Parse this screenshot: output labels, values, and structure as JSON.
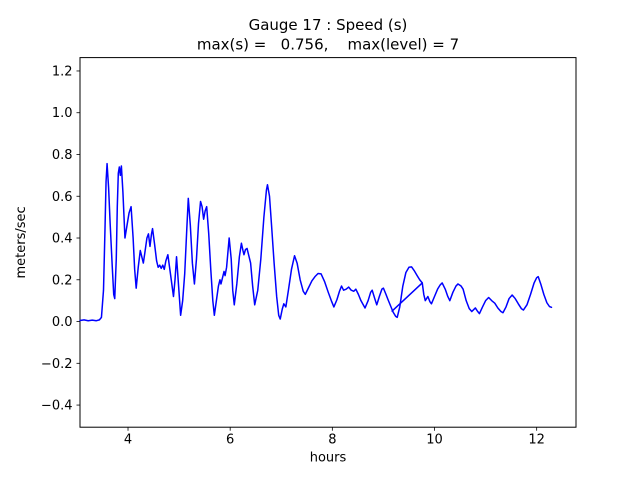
{
  "figure": {
    "background": "#ffffff"
  },
  "chart_data": {
    "type": "line",
    "title_line1": "Gauge 17 : Speed (s)",
    "title_line2": "max(s) =   0.756,    max(level) = 7",
    "xlabel": "hours",
    "ylabel": "meters/sec",
    "xlim": [
      3.06,
      12.77
    ],
    "ylim": [
      -0.506,
      1.264
    ],
    "xticks": {
      "values": [
        4,
        6,
        8,
        10,
        12
      ],
      "labels": [
        "4",
        "6",
        "8",
        "10",
        "12"
      ]
    },
    "yticks": {
      "values": [
        -0.4,
        -0.2,
        0.0,
        0.2,
        0.4,
        0.6,
        0.8,
        1.0,
        1.2
      ],
      "labels": [
        "−0.4",
        "−0.2",
        "0.0",
        "0.2",
        "0.4",
        "0.6",
        "0.8",
        "1.0",
        "1.2"
      ]
    },
    "grid": false,
    "legend_position": "none",
    "line_color": "#0000ff",
    "axis_color": "#000000",
    "annotations": {
      "max_s": 0.756,
      "max_level": 7
    },
    "series": [
      {
        "name": "speed",
        "points": [
          [
            3.06,
            0.005
          ],
          [
            3.14,
            0.008
          ],
          [
            3.22,
            0.004
          ],
          [
            3.3,
            0.007
          ],
          [
            3.38,
            0.004
          ],
          [
            3.44,
            0.008
          ],
          [
            3.48,
            0.02
          ],
          [
            3.52,
            0.15
          ],
          [
            3.55,
            0.45
          ],
          [
            3.57,
            0.67
          ],
          [
            3.59,
            0.756
          ],
          [
            3.62,
            0.64
          ],
          [
            3.65,
            0.47
          ],
          [
            3.69,
            0.27
          ],
          [
            3.72,
            0.13
          ],
          [
            3.74,
            0.11
          ],
          [
            3.77,
            0.3
          ],
          [
            3.79,
            0.55
          ],
          [
            3.81,
            0.71
          ],
          [
            3.83,
            0.74
          ],
          [
            3.85,
            0.7
          ],
          [
            3.87,
            0.745
          ],
          [
            3.9,
            0.62
          ],
          [
            3.94,
            0.4
          ],
          [
            3.98,
            0.46
          ],
          [
            4.02,
            0.52
          ],
          [
            4.06,
            0.55
          ],
          [
            4.1,
            0.4
          ],
          [
            4.13,
            0.25
          ],
          [
            4.16,
            0.16
          ],
          [
            4.2,
            0.26
          ],
          [
            4.24,
            0.34
          ],
          [
            4.27,
            0.31
          ],
          [
            4.3,
            0.28
          ],
          [
            4.33,
            0.33
          ],
          [
            4.37,
            0.4
          ],
          [
            4.4,
            0.42
          ],
          [
            4.43,
            0.36
          ],
          [
            4.46,
            0.42
          ],
          [
            4.48,
            0.445
          ],
          [
            4.52,
            0.37
          ],
          [
            4.56,
            0.29
          ],
          [
            4.59,
            0.26
          ],
          [
            4.62,
            0.27
          ],
          [
            4.65,
            0.255
          ],
          [
            4.68,
            0.27
          ],
          [
            4.71,
            0.25
          ],
          [
            4.74,
            0.29
          ],
          [
            4.78,
            0.32
          ],
          [
            4.83,
            0.23
          ],
          [
            4.89,
            0.12
          ],
          [
            4.92,
            0.2
          ],
          [
            4.95,
            0.31
          ],
          [
            4.99,
            0.17
          ],
          [
            5.03,
            0.03
          ],
          [
            5.07,
            0.1
          ],
          [
            5.11,
            0.23
          ],
          [
            5.15,
            0.44
          ],
          [
            5.18,
            0.59
          ],
          [
            5.22,
            0.46
          ],
          [
            5.26,
            0.28
          ],
          [
            5.3,
            0.18
          ],
          [
            5.34,
            0.3
          ],
          [
            5.38,
            0.47
          ],
          [
            5.42,
            0.575
          ],
          [
            5.45,
            0.55
          ],
          [
            5.48,
            0.49
          ],
          [
            5.51,
            0.53
          ],
          [
            5.54,
            0.55
          ],
          [
            5.58,
            0.42
          ],
          [
            5.62,
            0.25
          ],
          [
            5.66,
            0.1
          ],
          [
            5.69,
            0.03
          ],
          [
            5.73,
            0.1
          ],
          [
            5.77,
            0.17
          ],
          [
            5.8,
            0.2
          ],
          [
            5.82,
            0.18
          ],
          [
            5.85,
            0.21
          ],
          [
            5.88,
            0.24
          ],
          [
            5.9,
            0.22
          ],
          [
            5.93,
            0.26
          ],
          [
            5.98,
            0.4
          ],
          [
            6.02,
            0.3
          ],
          [
            6.05,
            0.15
          ],
          [
            6.08,
            0.08
          ],
          [
            6.13,
            0.18
          ],
          [
            6.18,
            0.31
          ],
          [
            6.22,
            0.375
          ],
          [
            6.25,
            0.34
          ],
          [
            6.27,
            0.32
          ],
          [
            6.3,
            0.345
          ],
          [
            6.33,
            0.35
          ],
          [
            6.36,
            0.32
          ],
          [
            6.4,
            0.28
          ],
          [
            6.44,
            0.17
          ],
          [
            6.48,
            0.08
          ],
          [
            6.54,
            0.15
          ],
          [
            6.6,
            0.3
          ],
          [
            6.66,
            0.5
          ],
          [
            6.71,
            0.63
          ],
          [
            6.73,
            0.655
          ],
          [
            6.77,
            0.6
          ],
          [
            6.81,
            0.46
          ],
          [
            6.86,
            0.28
          ],
          [
            6.91,
            0.12
          ],
          [
            6.95,
            0.03
          ],
          [
            6.98,
            0.012
          ],
          [
            7.02,
            0.06
          ],
          [
            7.05,
            0.085
          ],
          [
            7.09,
            0.07
          ],
          [
            7.14,
            0.15
          ],
          [
            7.2,
            0.25
          ],
          [
            7.26,
            0.315
          ],
          [
            7.31,
            0.28
          ],
          [
            7.37,
            0.2
          ],
          [
            7.43,
            0.145
          ],
          [
            7.47,
            0.13
          ],
          [
            7.53,
            0.16
          ],
          [
            7.6,
            0.195
          ],
          [
            7.66,
            0.215
          ],
          [
            7.72,
            0.23
          ],
          [
            7.78,
            0.228
          ],
          [
            7.85,
            0.19
          ],
          [
            7.92,
            0.14
          ],
          [
            7.98,
            0.1
          ],
          [
            8.03,
            0.07
          ],
          [
            8.09,
            0.105
          ],
          [
            8.14,
            0.145
          ],
          [
            8.18,
            0.17
          ],
          [
            8.22,
            0.15
          ],
          [
            8.27,
            0.155
          ],
          [
            8.32,
            0.165
          ],
          [
            8.37,
            0.15
          ],
          [
            8.42,
            0.145
          ],
          [
            8.46,
            0.155
          ],
          [
            8.51,
            0.13
          ],
          [
            8.56,
            0.1
          ],
          [
            8.61,
            0.078
          ],
          [
            8.64,
            0.065
          ],
          [
            8.7,
            0.1
          ],
          [
            8.75,
            0.14
          ],
          [
            8.78,
            0.15
          ],
          [
            8.83,
            0.11
          ],
          [
            8.87,
            0.08
          ],
          [
            8.92,
            0.12
          ],
          [
            8.97,
            0.155
          ],
          [
            9.0,
            0.16
          ],
          [
            9.05,
            0.13
          ],
          [
            9.09,
            0.105
          ],
          [
            9.14,
            0.075
          ],
          [
            9.19,
            0.045
          ],
          [
            9.24,
            0.025
          ],
          [
            9.27,
            0.02
          ],
          [
            9.32,
            0.07
          ],
          [
            9.38,
            0.17
          ],
          [
            9.44,
            0.235
          ],
          [
            9.5,
            0.26
          ],
          [
            9.55,
            0.262
          ],
          [
            9.6,
            0.245
          ],
          [
            9.66,
            0.22
          ],
          [
            9.71,
            0.2
          ],
          [
            9.76,
            0.185
          ],
          [
            9.79,
            0.13
          ],
          [
            9.82,
            0.1
          ],
          [
            9.87,
            0.12
          ],
          [
            9.91,
            0.095
          ],
          [
            9.94,
            0.085
          ],
          [
            10.0,
            0.12
          ],
          [
            10.06,
            0.155
          ],
          [
            10.11,
            0.175
          ],
          [
            10.15,
            0.185
          ],
          [
            10.21,
            0.155
          ],
          [
            10.26,
            0.12
          ],
          [
            10.3,
            0.1
          ],
          [
            10.36,
            0.14
          ],
          [
            10.42,
            0.17
          ],
          [
            10.46,
            0.18
          ],
          [
            10.52,
            0.17
          ],
          [
            10.56,
            0.155
          ],
          [
            10.62,
            0.1
          ],
          [
            10.68,
            0.062
          ],
          [
            10.73,
            0.048
          ],
          [
            10.77,
            0.058
          ],
          [
            10.8,
            0.065
          ],
          [
            10.84,
            0.05
          ],
          [
            10.88,
            0.038
          ],
          [
            10.94,
            0.07
          ],
          [
            11.0,
            0.1
          ],
          [
            11.06,
            0.115
          ],
          [
            11.12,
            0.1
          ],
          [
            11.18,
            0.088
          ],
          [
            11.24,
            0.065
          ],
          [
            11.3,
            0.048
          ],
          [
            11.34,
            0.042
          ],
          [
            11.4,
            0.07
          ],
          [
            11.46,
            0.11
          ],
          [
            11.52,
            0.127
          ],
          [
            11.58,
            0.11
          ],
          [
            11.64,
            0.085
          ],
          [
            11.7,
            0.062
          ],
          [
            11.74,
            0.055
          ],
          [
            11.81,
            0.08
          ],
          [
            11.88,
            0.13
          ],
          [
            11.95,
            0.185
          ],
          [
            12.0,
            0.21
          ],
          [
            12.03,
            0.215
          ],
          [
            12.08,
            0.18
          ],
          [
            12.14,
            0.13
          ],
          [
            12.2,
            0.09
          ],
          [
            12.25,
            0.072
          ],
          [
            12.29,
            0.068
          ]
        ]
      },
      {
        "name": "glitch-chord",
        "points": [
          [
            9.17,
            0.05
          ],
          [
            9.76,
            0.185
          ]
        ]
      }
    ]
  }
}
